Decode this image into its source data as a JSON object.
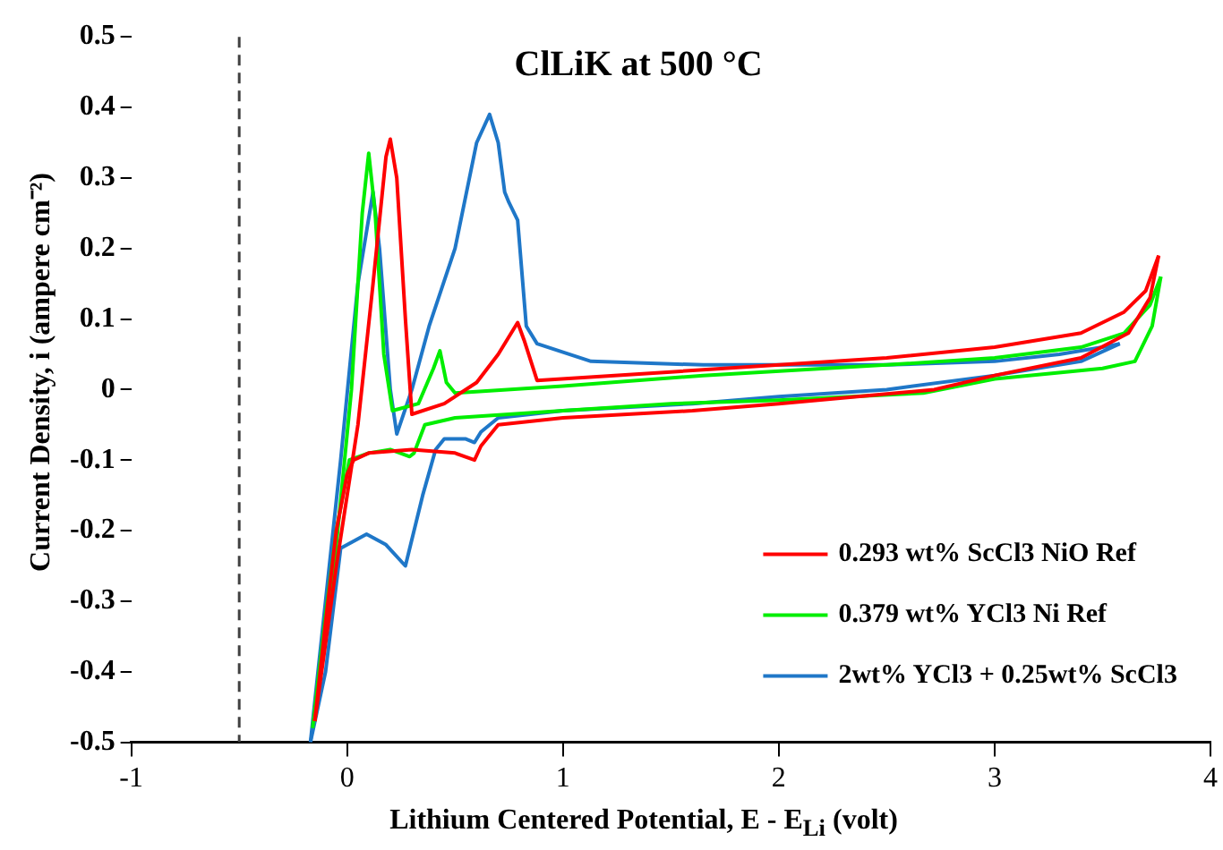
{
  "chart_data": {
    "type": "line",
    "title": "ClLiK at 500 °C",
    "xlabel": "Lithium Centered Potential, E - E$_{Li}$ (volt)",
    "ylabel": "Current Density, i (ampere cm⁻²)",
    "xlim": [
      -1,
      4
    ],
    "xticks": [
      -1,
      0,
      1,
      2,
      3,
      4
    ],
    "ylim": [
      -0.5,
      0.5
    ],
    "yticks": [
      -0.5,
      -0.4,
      -0.3,
      -0.2,
      -0.1,
      0,
      0.1,
      0.2,
      0.3,
      0.4,
      0.5
    ],
    "grid": false,
    "legend": "bottom right",
    "marker": "none",
    "line_style": "solid",
    "ref_lines": [
      {
        "axis": "x",
        "value": -0.5,
        "line_style": "dashed",
        "color": "#404040"
      }
    ],
    "series": [
      {
        "name": "0.293 wt% ScCl3 NiO Ref",
        "color": "#ff0000",
        "x": [
          -0.15,
          -0.05,
          0.05,
          0.12,
          0.18,
          0.2,
          0.23,
          0.27,
          0.3,
          0.45,
          0.6,
          0.7,
          0.79,
          0.82,
          0.88,
          1.5,
          2.5,
          3,
          3.4,
          3.6,
          3.7,
          3.76
        ],
        "values": [
          -0.47,
          -0.25,
          -0.05,
          0.15,
          0.33,
          0.355,
          0.3,
          0.1,
          -0.035,
          -0.02,
          0.01,
          0.05,
          0.095,
          0.07,
          0.013,
          0.025,
          0.045,
          0.06,
          0.08,
          0.11,
          0.14,
          0.19
        ]
      },
      {
        "color": "#ff0000",
        "x": [
          -0.15,
          -0.1,
          -0.05,
          0,
          0.03,
          0.1,
          0.3,
          0.5,
          0.59,
          0.62,
          0.7,
          1,
          1.6,
          2,
          2.72,
          3,
          3.4,
          3.62,
          3.72,
          3.76
        ],
        "values": [
          -0.47,
          -0.33,
          -0.2,
          -0.12,
          -0.1,
          -0.09,
          -0.085,
          -0.09,
          -0.1,
          -0.08,
          -0.05,
          -0.04,
          -0.03,
          -0.02,
          0,
          0.02,
          0.045,
          0.08,
          0.13,
          0.19
        ]
      },
      {
        "name": "0.379 wt% YCl3 Ni Ref",
        "color": "#00ee00",
        "x": [
          -0.15,
          -0.05,
          0.02,
          0.07,
          0.1,
          0.13,
          0.17,
          0.21,
          0.33,
          0.4,
          0.43,
          0.46,
          0.5,
          1,
          1.65,
          2.5,
          3,
          3.4,
          3.6,
          3.72,
          3.77
        ],
        "values": [
          -0.47,
          -0.22,
          0,
          0.25,
          0.335,
          0.25,
          0.05,
          -0.03,
          -0.02,
          0.03,
          0.055,
          0.01,
          -0.005,
          0.005,
          0.02,
          0.035,
          0.045,
          0.06,
          0.08,
          0.12,
          0.16
        ]
      },
      {
        "color": "#00ee00",
        "x": [
          -0.16,
          -0.1,
          -0.05,
          0.01,
          0.1,
          0.2,
          0.29,
          0.31,
          0.36,
          0.5,
          1,
          1.5,
          2,
          2.67,
          3,
          3.5,
          3.65,
          3.73,
          3.77
        ],
        "values": [
          -0.48,
          -0.32,
          -0.2,
          -0.1,
          -0.09,
          -0.085,
          -0.095,
          -0.09,
          -0.05,
          -0.04,
          -0.03,
          -0.02,
          -0.015,
          -0.005,
          0.015,
          0.03,
          0.04,
          0.09,
          0.16
        ]
      },
      {
        "name": "2wt% YCl3 + 0.25wt% ScCl3",
        "color": "#1f77c8",
        "x": [
          -0.17,
          -0.1,
          -0.03,
          0.05,
          0.12,
          0.15,
          0.2,
          0.23,
          0.3,
          0.38,
          0.5,
          0.6,
          0.66,
          0.7,
          0.73,
          0.75,
          0.79,
          0.83,
          0.88,
          1.13,
          1.65,
          2.5,
          3,
          3.3,
          3.5,
          3.58
        ],
        "values": [
          -0.5,
          -0.3,
          -0.1,
          0.15,
          0.28,
          0.2,
          0,
          -0.063,
          0,
          0.09,
          0.2,
          0.35,
          0.39,
          0.35,
          0.28,
          0.265,
          0.24,
          0.09,
          0.065,
          0.04,
          0.035,
          0.035,
          0.04,
          0.05,
          0.06,
          0.065
        ]
      },
      {
        "color": "#1f77c8",
        "x": [
          -0.17,
          -0.1,
          -0.03,
          0.09,
          0.18,
          0.27,
          0.35,
          0.41,
          0.45,
          0.55,
          0.59,
          0.62,
          0.7,
          1,
          1.6,
          2,
          2.5,
          3,
          3.4,
          3.58
        ],
        "values": [
          -0.5,
          -0.4,
          -0.225,
          -0.205,
          -0.22,
          -0.25,
          -0.15,
          -0.085,
          -0.07,
          -0.07,
          -0.075,
          -0.06,
          -0.04,
          -0.03,
          -0.02,
          -0.01,
          0,
          0.02,
          0.04,
          0.065
        ]
      }
    ]
  }
}
